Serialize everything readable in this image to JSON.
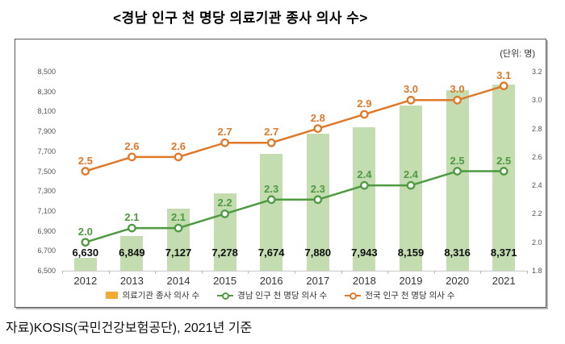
{
  "title": "<경남 인구 천 명당 의료기관 종사 의사 수>",
  "unit_label": "(단위: 명)",
  "source": "자료)KOSIS(국민건강보험공단), 2021년 기준",
  "chart_data": {
    "type": "bar",
    "subtype": "bar-line-combo",
    "title": "경남 인구 천 명당 의료기관 종사 의사 수",
    "categories": [
      "2012",
      "2013",
      "2014",
      "2015",
      "2016",
      "2017",
      "2018",
      "2019",
      "2020",
      "2021"
    ],
    "series": [
      {
        "name": "의료기관 종사 의사 수",
        "type": "bar",
        "axis": "left",
        "legend_color": "#F4A933",
        "bar_color": "#C3DDB1",
        "values": [
          6630,
          6849,
          7127,
          7278,
          7674,
          7880,
          7943,
          8159,
          8316,
          8371
        ]
      },
      {
        "name": "경남 인구 천 명당 의사 수",
        "type": "line",
        "axis": "right",
        "color": "#4E9A41",
        "values": [
          2.0,
          2.1,
          2.1,
          2.2,
          2.3,
          2.3,
          2.4,
          2.4,
          2.5,
          2.5
        ]
      },
      {
        "name": "전국 인구 천 명당 의사 수",
        "type": "line",
        "axis": "right",
        "color": "#E0782A",
        "values": [
          2.5,
          2.6,
          2.6,
          2.7,
          2.7,
          2.8,
          2.9,
          3.0,
          3.0,
          3.1
        ]
      }
    ],
    "left_axis": {
      "min": 6500,
      "max": 8500,
      "step": 200
    },
    "right_axis": {
      "min": 1.8,
      "max": 3.2,
      "step": 0.2
    },
    "grid": false,
    "legend_position": "bottom"
  }
}
